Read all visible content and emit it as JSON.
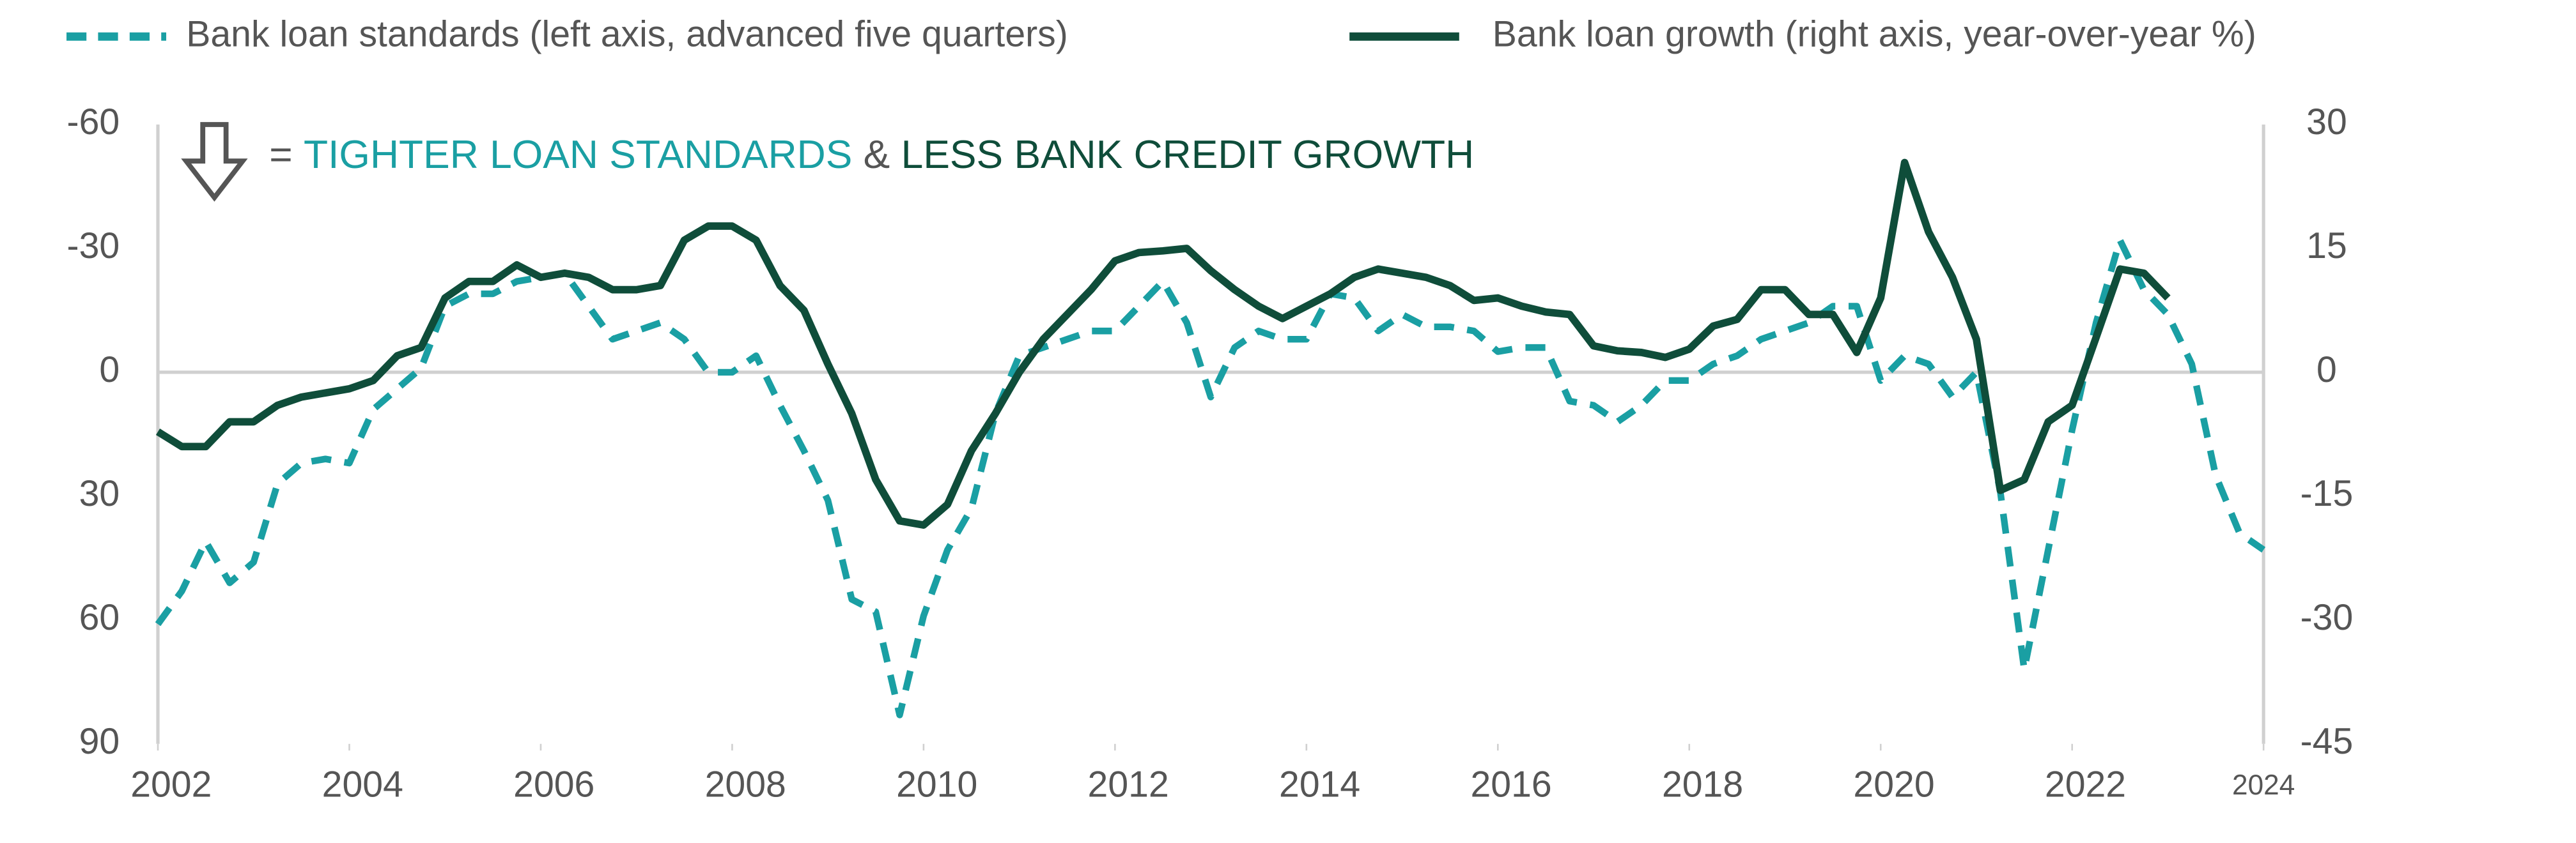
{
  "chart_data": {
    "type": "line",
    "annotation": [
      "=",
      "TIGHTER LOAN STANDARDS",
      "&",
      "LESS BANK CREDIT GROWTH"
    ],
    "x": [
      2002,
      2002.25,
      2002.5,
      2002.75,
      2003,
      2003.25,
      2003.5,
      2003.75,
      2004,
      2004.25,
      2004.5,
      2004.75,
      2005,
      2005.25,
      2005.5,
      2005.75,
      2006,
      2006.25,
      2006.5,
      2006.75,
      2007,
      2007.25,
      2007.5,
      2007.75,
      2008,
      2008.25,
      2008.5,
      2008.75,
      2009,
      2009.25,
      2009.5,
      2009.75,
      2010,
      2010.25,
      2010.5,
      2010.75,
      2011,
      2011.25,
      2011.5,
      2011.75,
      2012,
      2012.25,
      2012.5,
      2012.75,
      2013,
      2013.25,
      2013.5,
      2013.75,
      2014,
      2014.25,
      2014.5,
      2014.75,
      2015,
      2015.25,
      2015.5,
      2015.75,
      2016,
      2016.25,
      2016.5,
      2016.75,
      2017,
      2017.25,
      2017.5,
      2017.75,
      2018,
      2018.25,
      2018.5,
      2018.75,
      2019,
      2019.25,
      2019.5,
      2019.75,
      2020,
      2020.25,
      2020.5,
      2020.75,
      2021,
      2021.25,
      2021.5,
      2021.75,
      2022,
      2022.25,
      2022.5,
      2022.75,
      2023,
      2023.25,
      2023.5,
      2023.75,
      2024
    ],
    "series": [
      {
        "name": "Bank loan standards (left axis, advanced five quarters)",
        "color": "#1a9fa3",
        "line_style": "dashed",
        "axis": "y",
        "values": [
          61,
          53,
          41,
          51,
          46,
          27,
          22,
          21,
          22,
          9,
          4,
          -1,
          -16,
          -19,
          -19,
          -22,
          -23,
          -24,
          -16,
          -8,
          -10,
          -12,
          -8,
          0,
          0,
          -4,
          8,
          19,
          31,
          55,
          58,
          83,
          59,
          43,
          33,
          10,
          -4,
          -6,
          -8,
          -10,
          -10,
          -16,
          -22,
          -12,
          6,
          -6,
          -10,
          -8,
          -8,
          -19,
          -18,
          -10,
          -14,
          -11,
          -11,
          -10,
          -5,
          -6,
          -6,
          7,
          8,
          12,
          8,
          2,
          2,
          -2,
          -4,
          -8,
          -10,
          -12,
          -16,
          -16,
          2,
          -4,
          -2,
          6,
          0,
          29,
          72,
          43,
          14,
          -12,
          -32,
          -20,
          -14,
          -2,
          25,
          39,
          43
        ]
      },
      {
        "name": "Bank loan growth (right axis, year-over-year %)",
        "color": "#0f4d3a",
        "line_style": "solid",
        "axis": "y2",
        "values": [
          -7.2,
          -9,
          -9,
          -6,
          -6,
          -4,
          -3,
          -2.5,
          -2,
          -1,
          2,
          3,
          9,
          11,
          11,
          13,
          11.5,
          12,
          11.5,
          10,
          10,
          10.5,
          16,
          17.7,
          17.7,
          16,
          10.5,
          7.5,
          1,
          -5,
          -13,
          -18,
          -18.5,
          -16,
          -9.5,
          -5,
          0,
          4,
          7,
          10,
          13.5,
          14.5,
          14.7,
          15,
          12.3,
          10,
          8,
          6.5,
          8,
          9.5,
          11.5,
          12.5,
          12,
          11.5,
          10.5,
          8.7,
          9,
          8,
          7.3,
          7,
          3.2,
          2.6,
          2.4,
          1.8,
          2.8,
          5.6,
          6.4,
          10,
          10,
          7,
          7,
          2.4,
          9,
          25.4,
          17,
          11.5,
          4,
          -14.3,
          -13,
          -6,
          -4,
          4.2,
          12.5,
          12,
          9,
          null,
          null,
          null,
          null
        ]
      }
    ],
    "xlim": [
      2002,
      2024
    ],
    "xticks": [
      2002,
      2004,
      2006,
      2008,
      2010,
      2012,
      2014,
      2016,
      2018,
      2020,
      2022,
      2024
    ],
    "ylim": [
      90,
      -60
    ],
    "yticks": [
      -60,
      -30,
      0,
      30,
      60,
      90
    ],
    "y2lim": [
      -45,
      30
    ],
    "y2ticks": [
      30,
      15,
      0,
      -15,
      -30,
      -45
    ],
    "zero_line": true,
    "legend": "top"
  }
}
